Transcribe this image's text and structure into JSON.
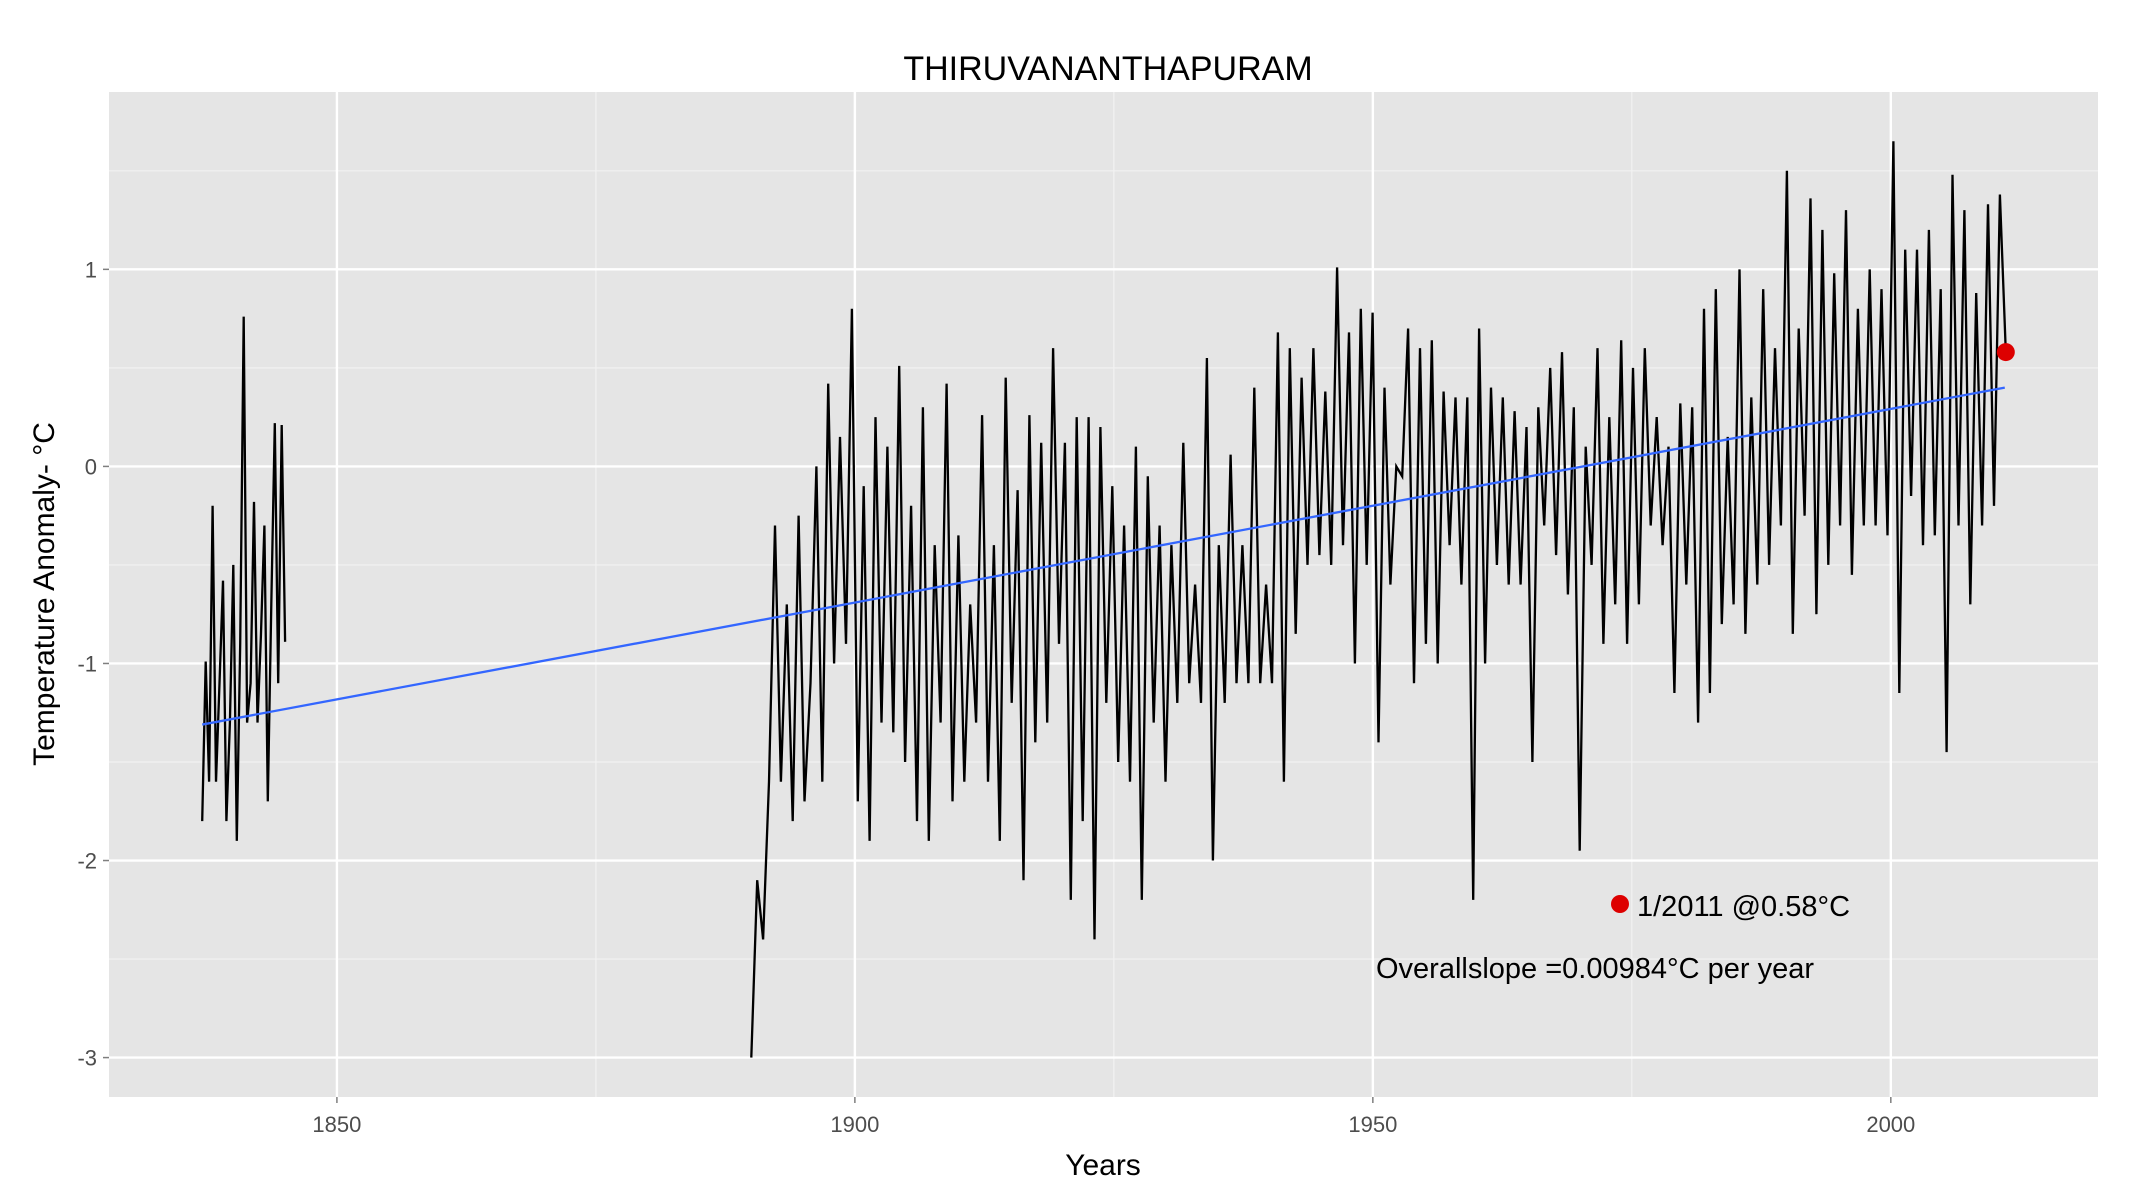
{
  "chart_data": {
    "type": "line",
    "title": "THIRUVANANTHAPURAM",
    "xlabel": "Years",
    "ylabel": "Temperature Anomaly- °C",
    "xlim": [
      1828,
      2020
    ],
    "ylim": [
      -3.2,
      1.9
    ],
    "x_ticks": [
      1850,
      1900,
      1950,
      2000
    ],
    "x_tick_labels": [
      "1850",
      "1900",
      "1950",
      "2000"
    ],
    "y_ticks": [
      -3,
      -2,
      -1,
      0,
      1
    ],
    "y_tick_labels": [
      "-3",
      "-2",
      "-1",
      "0",
      "1"
    ],
    "grid": true,
    "background": "#e5e5e5",
    "grid_color": "#ffffff",
    "line_color": "#000000",
    "trend_color": "#3366ff",
    "highlight_color": "#dd0000",
    "segments": [
      {
        "x0": 1837,
        "x1": 1845,
        "values": [
          -1.8,
          -0.99,
          -1.6,
          -0.2,
          -1.6,
          -1.1,
          -0.58,
          -1.8,
          -1.3,
          -0.5,
          -1.9,
          -0.9,
          0.76,
          -1.3,
          -1.1,
          -0.18,
          -1.3,
          -0.86,
          -0.3,
          -1.7,
          -0.7,
          0.22,
          -1.1,
          0.21,
          -0.89
        ]
      },
      {
        "x0": 1890,
        "x1": 2011.1,
        "values": [
          -3.0,
          -2.1,
          -2.4,
          -1.6,
          -0.3,
          -1.6,
          -0.7,
          -1.8,
          -0.25,
          -1.7,
          -1.1,
          0.0,
          -1.6,
          0.42,
          -1.0,
          0.15,
          -0.9,
          0.8,
          -1.7,
          -0.1,
          -1.9,
          0.25,
          -1.3,
          0.1,
          -1.35,
          0.51,
          -1.5,
          -0.2,
          -1.8,
          0.3,
          -1.9,
          -0.4,
          -1.3,
          0.42,
          -1.7,
          -0.35,
          -1.6,
          -0.7,
          -1.3,
          0.26,
          -1.6,
          -0.4,
          -1.9,
          0.45,
          -1.2,
          -0.12,
          -2.1,
          0.26,
          -1.4,
          0.12,
          -1.3,
          0.6,
          -0.9,
          0.12,
          -2.2,
          0.25,
          -1.8,
          0.25,
          -2.4,
          0.2,
          -1.2,
          -0.1,
          -1.5,
          -0.3,
          -1.6,
          0.1,
          -2.2,
          -0.05,
          -1.3,
          -0.3,
          -1.6,
          -0.4,
          -1.2,
          0.12,
          -1.1,
          -0.6,
          -1.2,
          0.55,
          -2.0,
          -0.4,
          -1.2,
          0.06,
          -1.1,
          -0.4,
          -1.1,
          0.4,
          -1.1,
          -0.6,
          -1.1,
          0.68,
          -1.6,
          0.6,
          -0.85,
          0.45,
          -0.5,
          0.6,
          -0.45,
          0.38,
          -0.5,
          1.01,
          -0.4,
          0.68,
          -1.0,
          0.8,
          -0.5,
          0.78,
          -1.4,
          0.4,
          -0.6,
          0.0,
          -0.05,
          0.7,
          -1.1,
          0.6,
          -0.9,
          0.64,
          -1.0,
          0.38,
          -0.4,
          0.35,
          -0.6,
          0.35,
          -2.2,
          0.7,
          -1.0,
          0.4,
          -0.5,
          0.35,
          -0.6,
          0.28,
          -0.6,
          0.2,
          -1.5,
          0.3,
          -0.3,
          0.5,
          -0.45,
          0.58,
          -0.65,
          0.3,
          -1.95,
          0.1,
          -0.5,
          0.6,
          -0.9,
          0.25,
          -0.7,
          0.64,
          -0.9,
          0.5,
          -0.7,
          0.6,
          -0.3,
          0.25,
          -0.4,
          0.1,
          -1.15,
          0.32,
          -0.6,
          0.3,
          -1.3,
          0.8,
          -1.15,
          0.9,
          -0.8,
          0.15,
          -0.7,
          1.0,
          -0.85,
          0.35,
          -0.6,
          0.9,
          -0.5,
          0.6,
          -0.3,
          1.5,
          -0.85,
          0.7,
          -0.25,
          1.36,
          -0.75,
          1.2,
          -0.5,
          0.98,
          -0.3,
          1.3,
          -0.55,
          0.8,
          -0.3,
          1.0,
          -0.3,
          0.9,
          -0.35,
          1.65,
          -1.15,
          1.1,
          -0.15,
          1.1,
          -0.4,
          1.2,
          -0.35,
          0.9,
          -1.45,
          1.48,
          -0.3,
          1.3,
          -0.7,
          0.88,
          -0.3,
          1.33,
          -0.2,
          1.38,
          0.58
        ]
      }
    ],
    "trend": {
      "x": [
        1837,
        2011
      ],
      "y": [
        -1.31,
        0.4
      ]
    },
    "highlight_point": {
      "x": 2011.1,
      "y": 0.58
    },
    "legend_marker_label": "1/2011 @0.58°C",
    "slope_annotation": "Overallslope =0.00984°C per year"
  }
}
